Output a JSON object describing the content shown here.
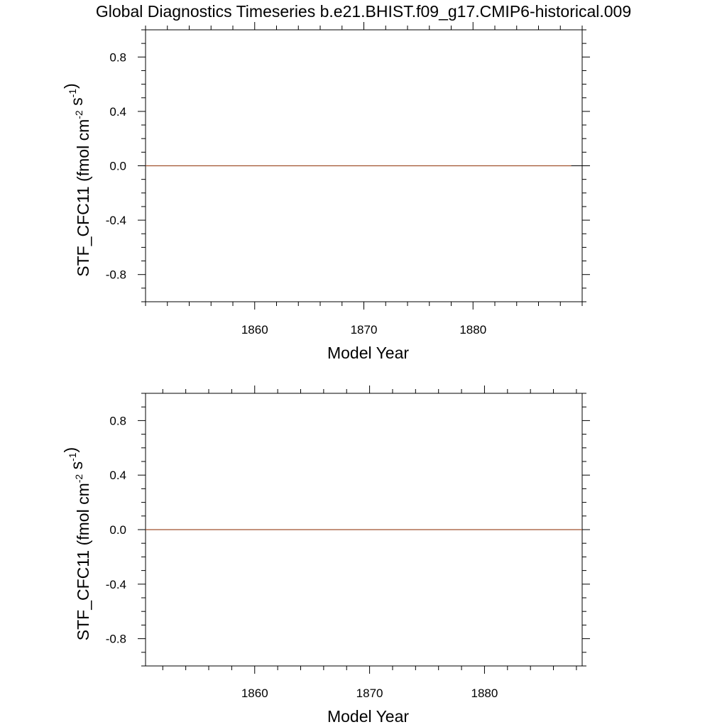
{
  "title": "Global Diagnostics Timeseries b.e21.BHIST.f09_g17.CMIP6-historical.009",
  "colors": {
    "series": "#a0522d",
    "axes": "#000000",
    "background": "#ffffff"
  },
  "chart_data": [
    {
      "type": "line",
      "xlabel": "Model Year",
      "ylabel": {
        "main": "STF_CFC11 (fmol cm",
        "exp1": "-2",
        "mid": " s",
        "exp2": "-1",
        "end": ")"
      },
      "xlim": [
        1850,
        1890
      ],
      "ylim": [
        -1.0,
        1.0
      ],
      "x_major_ticks": [
        1860,
        1870,
        1880
      ],
      "x_tick_labels": [
        "1860",
        "1870",
        "1880"
      ],
      "x_minor_step": 2,
      "y_major_ticks": [
        0.8,
        0.4,
        0.0,
        -0.4,
        -0.8
      ],
      "y_tick_labels": [
        "0.8",
        "0.4",
        "0.0",
        "-0.4",
        "-0.8"
      ],
      "y_minor_step": 0.1,
      "reference_line": 0.0,
      "grid": false,
      "series": [
        {
          "x": [
            1850,
            1889
          ],
          "y": [
            0.0,
            0.0
          ]
        }
      ]
    },
    {
      "type": "line",
      "xlabel": "Model Year",
      "ylabel": {
        "main": "STF_CFC11 (fmol cm",
        "exp1": "-2",
        "mid": " s",
        "exp2": "-1",
        "end": ")"
      },
      "xlim": [
        1850.5,
        1888.5
      ],
      "ylim": [
        -1.0,
        1.0
      ],
      "x_major_ticks": [
        1860,
        1870,
        1880
      ],
      "x_tick_labels": [
        "1860",
        "1870",
        "1880"
      ],
      "x_minor_step": 2,
      "y_major_ticks": [
        0.8,
        0.4,
        0.0,
        -0.4,
        -0.8
      ],
      "y_tick_labels": [
        "0.8",
        "0.4",
        "0.0",
        "-0.4",
        "-0.8"
      ],
      "y_minor_step": 0.1,
      "reference_line": 0.0,
      "grid": false,
      "series": [
        {
          "x": [
            1850.5,
            1888.5
          ],
          "y": [
            0.0,
            0.0
          ]
        }
      ]
    }
  ]
}
